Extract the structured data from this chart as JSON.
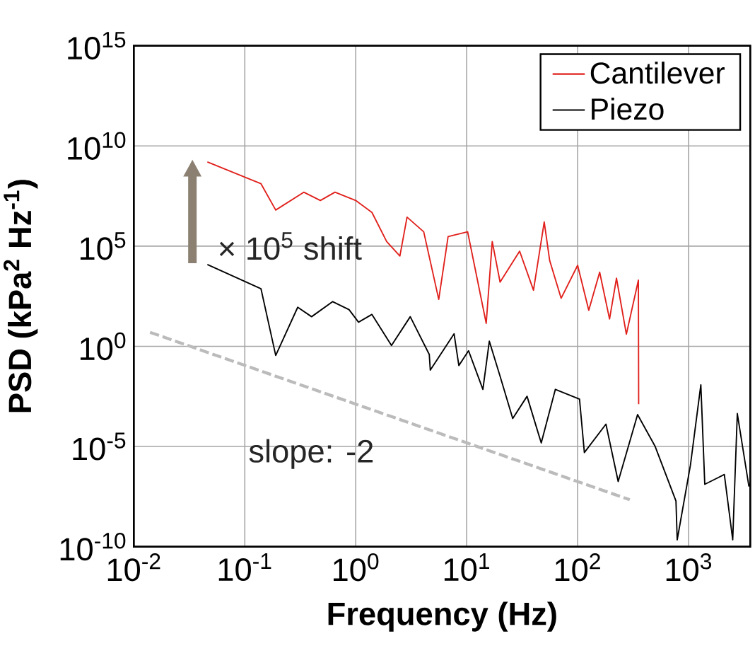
{
  "chart_data": {
    "type": "line",
    "xlabel": "Frequency (Hz)",
    "ylabel": "PSD (kPa$^{2}$ Hz$^{-1}$)",
    "log": "xy",
    "grid": true,
    "legend": "top right",
    "line_style": "solid",
    "xlim": [
      0.01,
      3600
    ],
    "ylim": [
      1e-10,
      1000000000000000.0
    ],
    "xticks": [
      {
        "value": 0.01,
        "label": "10$^{-2}$"
      },
      {
        "value": 0.1,
        "label": "10$^{-1}$"
      },
      {
        "value": 1,
        "label": "10$^{0}$"
      },
      {
        "value": 10,
        "label": "10$^{1}$"
      },
      {
        "value": 100,
        "label": "10$^{2}$"
      },
      {
        "value": 1000,
        "label": "10$^{3}$"
      }
    ],
    "yticks": [
      {
        "value": 1e-10,
        "label": "10$^{-10}$"
      },
      {
        "value": 1e-05,
        "label": "10$^{-5}$"
      },
      {
        "value": 1,
        "label": "10$^{0}$"
      },
      {
        "value": 100000.0,
        "label": "10$^{5}$"
      },
      {
        "value": 10000000000.0,
        "label": "10$^{10}$"
      },
      {
        "value": 1000000000000000.0,
        "label": "10$^{15}$"
      }
    ],
    "annotations": [
      "× 10$^{5}$ shift",
      "slope: -2"
    ],
    "series": [
      {
        "name": "Cantilever",
        "color": "#e0201b",
        "x": [
          0.046,
          0.14,
          0.19,
          0.34,
          0.48,
          0.65,
          1.0,
          1.4,
          1.9,
          2.5,
          2.9,
          4.1,
          5.6,
          6.8,
          10.2,
          15,
          17,
          20,
          30,
          40,
          50,
          56,
          71,
          100,
          126,
          158,
          194,
          224,
          275,
          353,
          355
        ],
        "values": [
          1600000000.0,
          130000000.0,
          6300000.0,
          49000000.0,
          19000000.0,
          49000000.0,
          19000000.0,
          4800000.0,
          170000.0,
          32000.0,
          2800000.0,
          520000.0,
          220,
          300000.0,
          520000.0,
          14,
          170000.0,
          1600.0,
          56000.0,
          630,
          1600000.0,
          19000.0,
          250,
          11000.0,
          63,
          5000.0,
          23,
          2500.0,
          4,
          2000.0,
          0.0013
        ]
      },
      {
        "name": "Piezo",
        "color": "#000000",
        "x": [
          0.046,
          0.14,
          0.19,
          0.3,
          0.4,
          0.62,
          0.87,
          1.06,
          1.4,
          2.1,
          3.1,
          4.6,
          4.7,
          7.7,
          8.5,
          10.4,
          14,
          16,
          20,
          26,
          35,
          47,
          63,
          104,
          115,
          180,
          232,
          347,
          500,
          770,
          790,
          1040,
          1290,
          1400,
          2100,
          2500,
          2750,
          3500
        ],
        "values": [
          12000.0,
          740,
          0.35,
          89,
          30,
          170,
          68,
          16,
          39,
          1.1,
          30,
          0.39,
          0.065,
          4.2,
          0.11,
          0.6,
          0.0071,
          1.8,
          0.032,
          0.00025,
          0.0032,
          1.5e-05,
          0.0071,
          0.0023,
          5e-06,
          0.00013,
          1.8e-07,
          0.00039,
          1e-05,
          1.9e-08,
          2.2e-10,
          1.2e-06,
          0.012,
          1.3e-07,
          4e-07,
          2.2e-10,
          0.00044,
          1e-07
        ]
      },
      {
        "color": "#bbbbbb",
        "line_style": "dashed",
        "x": [
          0.014,
          295
        ],
        "values": [
          5.0,
          2.2e-08
        ]
      }
    ]
  }
}
